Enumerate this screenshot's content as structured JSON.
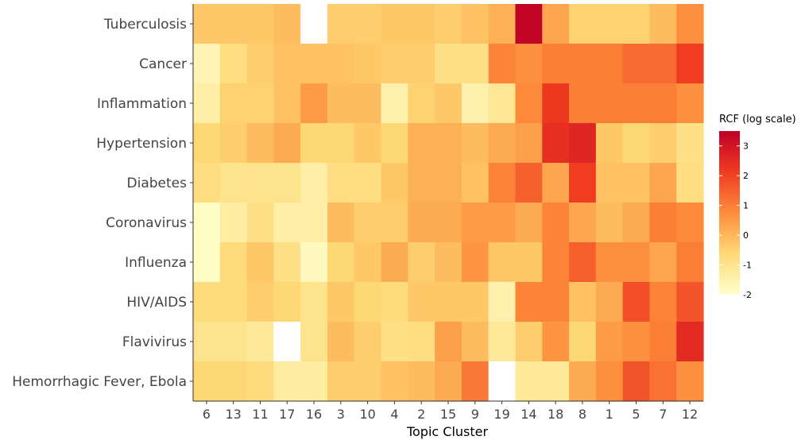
{
  "chart_data": {
    "type": "heatmap",
    "xlabel": "Topic Cluster",
    "x_categories": [
      "6",
      "13",
      "11",
      "17",
      "16",
      "3",
      "10",
      "4",
      "2",
      "15",
      "9",
      "19",
      "14",
      "18",
      "8",
      "1",
      "5",
      "7",
      "12"
    ],
    "y_categories": [
      "Tuberculosis",
      "Cancer",
      "Inflammation",
      "Hypertension",
      "Diabetes",
      "Coronavirus",
      "Influenza",
      "HIV/AIDS",
      "Flavivirus",
      "Hemorrhagic Fever, Ebola"
    ],
    "values": [
      [
        -0.3,
        -0.3,
        -0.3,
        -0.1,
        null,
        -0.4,
        -0.4,
        -0.3,
        -0.3,
        -0.4,
        -0.2,
        0.1,
        3.4,
        0.3,
        -0.5,
        -0.5,
        -0.5,
        -0.1,
        0.7
      ],
      [
        -1.6,
        -0.8,
        -0.4,
        -0.2,
        -0.2,
        -0.2,
        -0.3,
        -0.4,
        -0.4,
        -0.9,
        -0.9,
        0.9,
        0.7,
        1.0,
        1.0,
        1.0,
        1.3,
        1.3,
        2.1
      ],
      [
        -1.4,
        -0.5,
        -0.5,
        -0.2,
        0.5,
        -0.1,
        -0.1,
        -1.5,
        -0.5,
        -0.3,
        -1.5,
        -1.1,
        0.8,
        2.2,
        1.0,
        1.0,
        1.0,
        1.0,
        0.7
      ],
      [
        -0.6,
        -0.4,
        -0.1,
        0.2,
        -0.6,
        -0.6,
        -0.3,
        -0.6,
        0.1,
        0.1,
        -0.1,
        0.2,
        0.4,
        2.4,
        2.6,
        -0.3,
        -0.6,
        -0.4,
        -0.9
      ],
      [
        -0.8,
        -1.0,
        -1.0,
        -1.0,
        -1.4,
        -0.8,
        -0.8,
        -0.3,
        0.1,
        0.1,
        -0.2,
        0.9,
        1.5,
        0.3,
        2.1,
        -0.2,
        -0.2,
        0.3,
        -0.8
      ],
      [
        -1.9,
        -1.3,
        -0.9,
        -1.4,
        -1.4,
        -0.1,
        -0.4,
        -0.4,
        0.2,
        0.2,
        0.5,
        0.5,
        0.2,
        0.9,
        0.3,
        -0.1,
        0.2,
        1.0,
        0.8
      ],
      [
        -1.9,
        -0.7,
        -0.3,
        -0.9,
        -1.8,
        -0.6,
        -0.3,
        0.2,
        -0.4,
        -0.1,
        0.6,
        -0.3,
        -0.3,
        0.9,
        1.5,
        0.7,
        0.7,
        0.3,
        1.0
      ],
      [
        -0.7,
        -0.7,
        -0.4,
        -0.6,
        -1.0,
        -0.3,
        -0.6,
        -0.7,
        -0.3,
        -0.3,
        -0.3,
        -1.5,
        0.9,
        0.9,
        -0.2,
        0.2,
        1.8,
        0.9,
        1.7
      ],
      [
        -1.0,
        -1.0,
        -1.2,
        null,
        -1.0,
        -0.1,
        -0.4,
        -0.9,
        -0.8,
        0.4,
        -0.1,
        -1.2,
        -0.4,
        0.6,
        -0.6,
        0.5,
        0.7,
        1.0,
        2.5
      ],
      [
        -0.6,
        -0.6,
        -0.7,
        -1.3,
        -1.3,
        -0.4,
        -0.4,
        -0.2,
        -0.1,
        0.2,
        1.1,
        null,
        -1.2,
        -1.2,
        0.2,
        0.7,
        1.7,
        1.2,
        0.7
      ]
    ],
    "colorbar": {
      "title": "RCF (log scale)",
      "range": [
        -2,
        3.5
      ],
      "ticks": [
        "3",
        "2",
        "1",
        "0",
        "-1",
        "-2"
      ],
      "low_color": "#ffffcc",
      "mid_color": "#fd8d3c",
      "high_color": "#bd0026"
    },
    "missing_color": "#ffffff",
    "legend_position": "right"
  }
}
